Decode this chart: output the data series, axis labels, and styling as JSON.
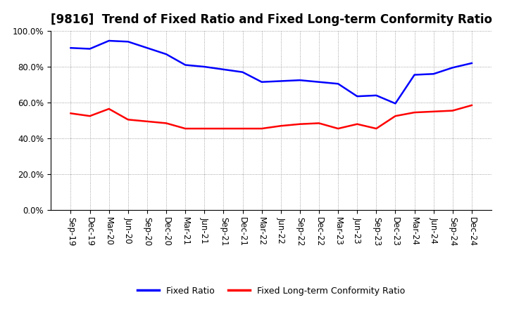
{
  "title": "[9816]  Trend of Fixed Ratio and Fixed Long-term Conformity Ratio",
  "x_labels": [
    "Sep-19",
    "Dec-19",
    "Mar-20",
    "Jun-20",
    "Sep-20",
    "Dec-20",
    "Mar-21",
    "Jun-21",
    "Sep-21",
    "Dec-21",
    "Mar-22",
    "Jun-22",
    "Sep-22",
    "Dec-22",
    "Mar-23",
    "Jun-23",
    "Sep-23",
    "Dec-23",
    "Mar-24",
    "Jun-24",
    "Sep-24",
    "Dec-24"
  ],
  "fixed_ratio": [
    90.5,
    90.0,
    94.5,
    94.0,
    90.5,
    87.0,
    81.0,
    80.0,
    78.5,
    77.0,
    71.5,
    72.0,
    72.5,
    71.5,
    70.5,
    63.5,
    64.0,
    59.5,
    75.5,
    76.0,
    79.5,
    82.0
  ],
  "fixed_lt_ratio": [
    54.0,
    52.5,
    56.5,
    50.5,
    49.5,
    48.5,
    45.5,
    45.5,
    45.5,
    45.5,
    45.5,
    47.0,
    48.0,
    48.5,
    45.5,
    48.0,
    45.5,
    52.5,
    54.5,
    55.0,
    55.5,
    58.5
  ],
  "fixed_ratio_color": "#0000FF",
  "fixed_lt_ratio_color": "#FF0000",
  "ylim": [
    0,
    100
  ],
  "yticks": [
    0,
    20,
    40,
    60,
    80,
    100
  ],
  "background_color": "#ffffff",
  "plot_bg_color": "#ffffff",
  "grid_color": "#888888",
  "line_width": 1.8,
  "title_fontsize": 12,
  "tick_fontsize": 8.5,
  "legend_labels": [
    "Fixed Ratio",
    "Fixed Long-term Conformity Ratio"
  ]
}
